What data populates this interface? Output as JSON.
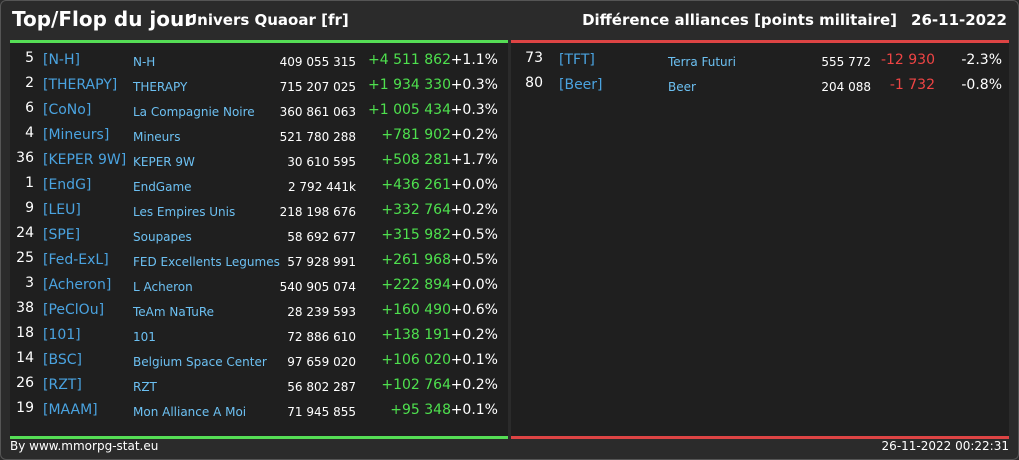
{
  "header": {
    "title": "Top/Flop du jour",
    "universe": "Univers Quaoar [fr]",
    "ranking_label": "Différence alliances [points militaire]",
    "date": "26-11-2022"
  },
  "top": [
    {
      "rank": "5",
      "tag": "[N-H]",
      "name": "N-H",
      "points": "409 055 315",
      "diff": "+4 511 862",
      "pct": "+1.1%"
    },
    {
      "rank": "2",
      "tag": "[THERAPY]",
      "name": "THERAPY",
      "points": "715 207 025",
      "diff": "+1 934 330",
      "pct": "+0.3%"
    },
    {
      "rank": "6",
      "tag": "[CoNo]",
      "name": "La Compagnie Noire",
      "points": "360 861 063",
      "diff": "+1 005 434",
      "pct": "+0.3%"
    },
    {
      "rank": "4",
      "tag": "[Mineurs]",
      "name": "Mineurs",
      "points": "521 780 288",
      "diff": "+781 902",
      "pct": "+0.2%"
    },
    {
      "rank": "36",
      "tag": "[KEPER 9W]",
      "name": "KEPER 9W",
      "points": "30 610 595",
      "diff": "+508 281",
      "pct": "+1.7%"
    },
    {
      "rank": "1",
      "tag": "[EndG]",
      "name": "EndGame",
      "points": "2 792 441k",
      "diff": "+436 261",
      "pct": "+0.0%"
    },
    {
      "rank": "9",
      "tag": "[LEU]",
      "name": "Les Empires Unis",
      "points": "218 198 676",
      "diff": "+332 764",
      "pct": "+0.2%"
    },
    {
      "rank": "24",
      "tag": "[SPE]",
      "name": "Soupapes",
      "points": "58 692 677",
      "diff": "+315 982",
      "pct": "+0.5%"
    },
    {
      "rank": "25",
      "tag": "[Fed-ExL]",
      "name": "FED Excellents Legumes",
      "points": "57 928 991",
      "diff": "+261 968",
      "pct": "+0.5%"
    },
    {
      "rank": "3",
      "tag": "[Acheron]",
      "name": "L Acheron",
      "points": "540 905 074",
      "diff": "+222 894",
      "pct": "+0.0%"
    },
    {
      "rank": "38",
      "tag": "[PeClOu]",
      "name": "TeAm NaTuRe",
      "points": "28 239 593",
      "diff": "+160 490",
      "pct": "+0.6%"
    },
    {
      "rank": "18",
      "tag": "[101]",
      "name": "101",
      "points": "72 886 610",
      "diff": "+138 191",
      "pct": "+0.2%"
    },
    {
      "rank": "14",
      "tag": "[BSC]",
      "name": "Belgium Space Center",
      "points": "97 659 020",
      "diff": "+106 020",
      "pct": "+0.1%"
    },
    {
      "rank": "26",
      "tag": "[RZT]",
      "name": "RZT",
      "points": "56 802 287",
      "diff": "+102 764",
      "pct": "+0.2%"
    },
    {
      "rank": "19",
      "tag": "[MAAM]",
      "name": "Mon Alliance A Moi",
      "points": "71 945 855",
      "diff": "+95 348",
      "pct": "+0.1%"
    }
  ],
  "flop": [
    {
      "rank": "73",
      "tag": "[TFT]",
      "name": "Terra Futuri",
      "points": "555 772",
      "diff": "-12 930",
      "pct": "-2.3%"
    },
    {
      "rank": "80",
      "tag": "[Beer]",
      "name": "Beer",
      "points": "204 088",
      "diff": "-1 732",
      "pct": "-0.8%"
    }
  ],
  "footer": {
    "source": "By www.mmorpg-stat.eu",
    "timestamp": "26-11-2022 00:22:31"
  },
  "colors": {
    "positive": "#4ee04e",
    "negative": "#ee4444",
    "tag": "#4aa3e0",
    "name": "#6cc0f2"
  }
}
